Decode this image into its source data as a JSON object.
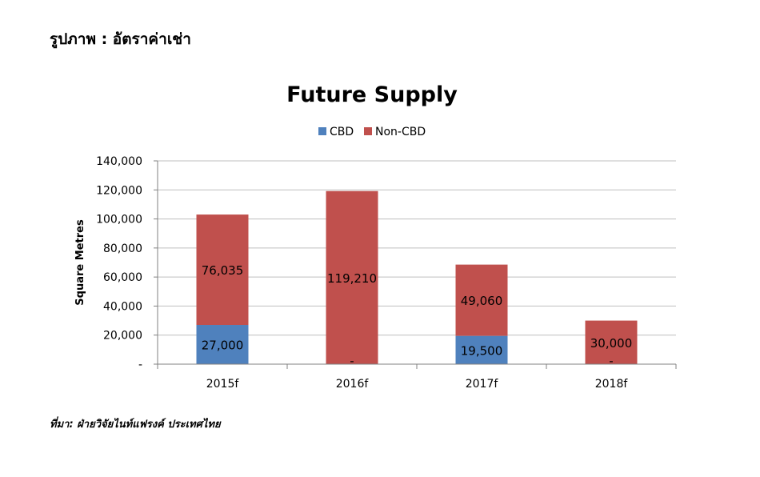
{
  "caption": "รูปภาพ   : อัตราค่าเช่า",
  "source": "ที่มา: ฝ่ายวิจัยไนท์แฟรงค์ ประเทศไทย",
  "chart_data": {
    "type": "bar",
    "stacked": true,
    "title": "Future Supply",
    "xlabel": "",
    "ylabel": "Square Metres",
    "categories": [
      "2015f",
      "2016f",
      "2017f",
      "2018f"
    ],
    "series": [
      {
        "name": "CBD",
        "color": "#4f81bd",
        "values": [
          27000,
          0,
          19500,
          0
        ],
        "data_labels": [
          "27,000",
          "",
          "19,500",
          ""
        ]
      },
      {
        "name": "Non-CBD",
        "color": "#c0504d",
        "values": [
          76035,
          119210,
          49060,
          30000
        ],
        "data_labels": [
          "76,035",
          "119,210",
          "49,060",
          "30,000"
        ]
      }
    ],
    "zero_marks": [
      "-",
      "-",
      "-",
      "-"
    ],
    "ylim": [
      0,
      140000
    ],
    "yticks": [
      "-",
      "20,000",
      "40,000",
      "60,000",
      "80,000",
      "100,000",
      "120,000",
      "140,000"
    ],
    "grid": true,
    "legend_position": "top"
  }
}
